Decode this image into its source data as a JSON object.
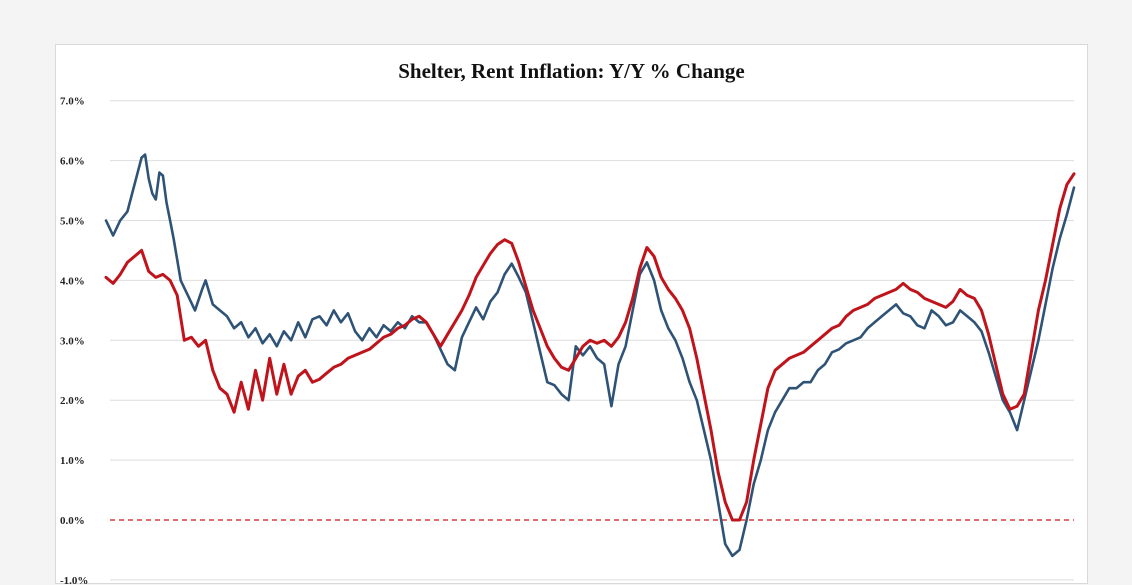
{
  "chart_data": {
    "type": "line",
    "title": "Shelter, Rent Inflation: Y/Y % Change",
    "xlabel": "",
    "ylabel": "",
    "ylim": [
      -1.0,
      7.0
    ],
    "yticks": [
      "7.0%",
      "6.0%",
      "5.0%",
      "4.0%",
      "3.0%",
      "2.0%",
      "1.0%",
      "0.0%",
      "-1.0%"
    ],
    "ytick_values": [
      7,
      6,
      5,
      4,
      3,
      2,
      1,
      0,
      -1
    ],
    "grid": true,
    "zero_line": true,
    "x_axis_labels_visible": false,
    "colors": {
      "blue": "#2f5376",
      "red": "#c0141c",
      "zero": "#d63c3c",
      "grid": "#dedede"
    },
    "series": [
      {
        "color": "blue",
        "points": [
          [
            0,
            5.0
          ],
          [
            2,
            4.75
          ],
          [
            4,
            5.0
          ],
          [
            6,
            5.15
          ],
          [
            8,
            5.6
          ],
          [
            10,
            6.05
          ],
          [
            11,
            6.1
          ],
          [
            12,
            5.7
          ],
          [
            13,
            5.45
          ],
          [
            14,
            5.35
          ],
          [
            15,
            5.8
          ],
          [
            16,
            5.75
          ],
          [
            17,
            5.3
          ],
          [
            18,
            5.0
          ],
          [
            19,
            4.7
          ],
          [
            21,
            4.0
          ],
          [
            23,
            3.75
          ],
          [
            25,
            3.5
          ],
          [
            27,
            3.85
          ],
          [
            28,
            4.0
          ],
          [
            30,
            3.6
          ],
          [
            32,
            3.5
          ],
          [
            34,
            3.4
          ],
          [
            36,
            3.2
          ],
          [
            38,
            3.3
          ],
          [
            40,
            3.05
          ],
          [
            42,
            3.2
          ],
          [
            44,
            2.95
          ],
          [
            46,
            3.1
          ],
          [
            48,
            2.9
          ],
          [
            50,
            3.15
          ],
          [
            52,
            3.0
          ],
          [
            54,
            3.3
          ],
          [
            56,
            3.05
          ],
          [
            58,
            3.35
          ],
          [
            60,
            3.4
          ],
          [
            62,
            3.25
          ],
          [
            64,
            3.5
          ],
          [
            66,
            3.3
          ],
          [
            68,
            3.45
          ],
          [
            70,
            3.15
          ],
          [
            72,
            3.0
          ],
          [
            74,
            3.2
          ],
          [
            76,
            3.05
          ],
          [
            78,
            3.25
          ],
          [
            80,
            3.15
          ],
          [
            82,
            3.3
          ],
          [
            84,
            3.2
          ],
          [
            86,
            3.4
          ],
          [
            88,
            3.3
          ],
          [
            90,
            3.3
          ],
          [
            92,
            3.1
          ],
          [
            94,
            2.85
          ],
          [
            96,
            2.6
          ],
          [
            98,
            2.5
          ],
          [
            100,
            3.05
          ],
          [
            102,
            3.3
          ],
          [
            104,
            3.55
          ],
          [
            106,
            3.35
          ],
          [
            108,
            3.65
          ],
          [
            110,
            3.8
          ],
          [
            112,
            4.1
          ],
          [
            114,
            4.28
          ],
          [
            116,
            4.05
          ],
          [
            118,
            3.8
          ],
          [
            120,
            3.3
          ],
          [
            122,
            2.8
          ],
          [
            124,
            2.3
          ],
          [
            126,
            2.25
          ],
          [
            128,
            2.1
          ],
          [
            130,
            2.0
          ],
          [
            132,
            2.9
          ],
          [
            134,
            2.75
          ],
          [
            136,
            2.9
          ],
          [
            138,
            2.7
          ],
          [
            140,
            2.6
          ],
          [
            142,
            1.9
          ],
          [
            144,
            2.6
          ],
          [
            146,
            2.9
          ],
          [
            148,
            3.5
          ],
          [
            150,
            4.1
          ],
          [
            152,
            4.3
          ],
          [
            154,
            4.0
          ],
          [
            156,
            3.5
          ],
          [
            158,
            3.2
          ],
          [
            160,
            3.0
          ],
          [
            162,
            2.7
          ],
          [
            164,
            2.3
          ],
          [
            166,
            2.0
          ],
          [
            168,
            1.5
          ],
          [
            170,
            1.0
          ],
          [
            172,
            0.3
          ],
          [
            174,
            -0.4
          ],
          [
            176,
            -0.6
          ],
          [
            178,
            -0.5
          ],
          [
            180,
            0.0
          ],
          [
            182,
            0.6
          ],
          [
            184,
            1.0
          ],
          [
            186,
            1.5
          ],
          [
            188,
            1.8
          ],
          [
            190,
            2.0
          ],
          [
            192,
            2.2
          ],
          [
            194,
            2.2
          ],
          [
            196,
            2.3
          ],
          [
            198,
            2.3
          ],
          [
            200,
            2.5
          ],
          [
            202,
            2.6
          ],
          [
            204,
            2.8
          ],
          [
            206,
            2.85
          ],
          [
            208,
            2.95
          ],
          [
            210,
            3.0
          ],
          [
            212,
            3.05
          ],
          [
            214,
            3.2
          ],
          [
            216,
            3.3
          ],
          [
            218,
            3.4
          ],
          [
            220,
            3.5
          ],
          [
            222,
            3.6
          ],
          [
            224,
            3.45
          ],
          [
            226,
            3.4
          ],
          [
            228,
            3.25
          ],
          [
            230,
            3.2
          ],
          [
            232,
            3.5
          ],
          [
            234,
            3.4
          ],
          [
            236,
            3.25
          ],
          [
            238,
            3.3
          ],
          [
            240,
            3.5
          ],
          [
            242,
            3.4
          ],
          [
            244,
            3.3
          ],
          [
            246,
            3.15
          ],
          [
            248,
            2.8
          ],
          [
            250,
            2.4
          ],
          [
            252,
            2.0
          ],
          [
            254,
            1.8
          ],
          [
            256,
            1.5
          ],
          [
            258,
            2.0
          ],
          [
            260,
            2.5
          ],
          [
            262,
            3.0
          ],
          [
            264,
            3.6
          ],
          [
            266,
            4.2
          ],
          [
            268,
            4.7
          ],
          [
            270,
            5.1
          ],
          [
            272,
            5.55
          ]
        ]
      },
      {
        "color": "red",
        "points": [
          [
            0,
            4.05
          ],
          [
            2,
            3.95
          ],
          [
            4,
            4.1
          ],
          [
            6,
            4.3
          ],
          [
            8,
            4.4
          ],
          [
            10,
            4.5
          ],
          [
            12,
            4.15
          ],
          [
            14,
            4.05
          ],
          [
            16,
            4.1
          ],
          [
            18,
            4.0
          ],
          [
            20,
            3.75
          ],
          [
            22,
            3.0
          ],
          [
            24,
            3.05
          ],
          [
            26,
            2.9
          ],
          [
            28,
            3.0
          ],
          [
            30,
            2.5
          ],
          [
            32,
            2.2
          ],
          [
            34,
            2.1
          ],
          [
            36,
            1.8
          ],
          [
            38,
            2.3
          ],
          [
            40,
            1.85
          ],
          [
            42,
            2.5
          ],
          [
            44,
            2.0
          ],
          [
            46,
            2.7
          ],
          [
            48,
            2.1
          ],
          [
            50,
            2.6
          ],
          [
            52,
            2.1
          ],
          [
            54,
            2.4
          ],
          [
            56,
            2.5
          ],
          [
            58,
            2.3
          ],
          [
            60,
            2.35
          ],
          [
            62,
            2.45
          ],
          [
            64,
            2.55
          ],
          [
            66,
            2.6
          ],
          [
            68,
            2.7
          ],
          [
            70,
            2.75
          ],
          [
            72,
            2.8
          ],
          [
            74,
            2.85
          ],
          [
            76,
            2.95
          ],
          [
            78,
            3.05
          ],
          [
            80,
            3.1
          ],
          [
            82,
            3.2
          ],
          [
            84,
            3.25
          ],
          [
            86,
            3.35
          ],
          [
            88,
            3.4
          ],
          [
            90,
            3.3
          ],
          [
            92,
            3.1
          ],
          [
            94,
            2.9
          ],
          [
            96,
            3.1
          ],
          [
            98,
            3.3
          ],
          [
            100,
            3.5
          ],
          [
            102,
            3.75
          ],
          [
            104,
            4.05
          ],
          [
            106,
            4.25
          ],
          [
            108,
            4.45
          ],
          [
            110,
            4.6
          ],
          [
            112,
            4.68
          ],
          [
            114,
            4.62
          ],
          [
            116,
            4.3
          ],
          [
            118,
            3.9
          ],
          [
            120,
            3.5
          ],
          [
            122,
            3.2
          ],
          [
            124,
            2.9
          ],
          [
            126,
            2.7
          ],
          [
            128,
            2.55
          ],
          [
            130,
            2.5
          ],
          [
            132,
            2.7
          ],
          [
            134,
            2.9
          ],
          [
            136,
            3.0
          ],
          [
            138,
            2.95
          ],
          [
            140,
            3.0
          ],
          [
            142,
            2.9
          ],
          [
            144,
            3.05
          ],
          [
            146,
            3.3
          ],
          [
            148,
            3.7
          ],
          [
            150,
            4.2
          ],
          [
            152,
            4.55
          ],
          [
            154,
            4.4
          ],
          [
            156,
            4.05
          ],
          [
            158,
            3.85
          ],
          [
            160,
            3.7
          ],
          [
            162,
            3.5
          ],
          [
            164,
            3.2
          ],
          [
            166,
            2.7
          ],
          [
            168,
            2.1
          ],
          [
            170,
            1.5
          ],
          [
            172,
            0.8
          ],
          [
            174,
            0.3
          ],
          [
            176,
            0.0
          ],
          [
            178,
            0.0
          ],
          [
            180,
            0.3
          ],
          [
            182,
            1.0
          ],
          [
            184,
            1.6
          ],
          [
            186,
            2.2
          ],
          [
            188,
            2.5
          ],
          [
            190,
            2.6
          ],
          [
            192,
            2.7
          ],
          [
            194,
            2.75
          ],
          [
            196,
            2.8
          ],
          [
            198,
            2.9
          ],
          [
            200,
            3.0
          ],
          [
            202,
            3.1
          ],
          [
            204,
            3.2
          ],
          [
            206,
            3.25
          ],
          [
            208,
            3.4
          ],
          [
            210,
            3.5
          ],
          [
            212,
            3.55
          ],
          [
            214,
            3.6
          ],
          [
            216,
            3.7
          ],
          [
            218,
            3.75
          ],
          [
            220,
            3.8
          ],
          [
            222,
            3.85
          ],
          [
            224,
            3.95
          ],
          [
            226,
            3.85
          ],
          [
            228,
            3.8
          ],
          [
            230,
            3.7
          ],
          [
            232,
            3.65
          ],
          [
            234,
            3.6
          ],
          [
            236,
            3.55
          ],
          [
            238,
            3.65
          ],
          [
            240,
            3.85
          ],
          [
            242,
            3.75
          ],
          [
            244,
            3.7
          ],
          [
            246,
            3.5
          ],
          [
            248,
            3.1
          ],
          [
            250,
            2.6
          ],
          [
            252,
            2.1
          ],
          [
            254,
            1.85
          ],
          [
            256,
            1.9
          ],
          [
            258,
            2.1
          ],
          [
            260,
            2.8
          ],
          [
            262,
            3.5
          ],
          [
            264,
            4.0
          ],
          [
            266,
            4.6
          ],
          [
            268,
            5.2
          ],
          [
            270,
            5.6
          ],
          [
            272,
            5.78
          ]
        ]
      }
    ]
  }
}
